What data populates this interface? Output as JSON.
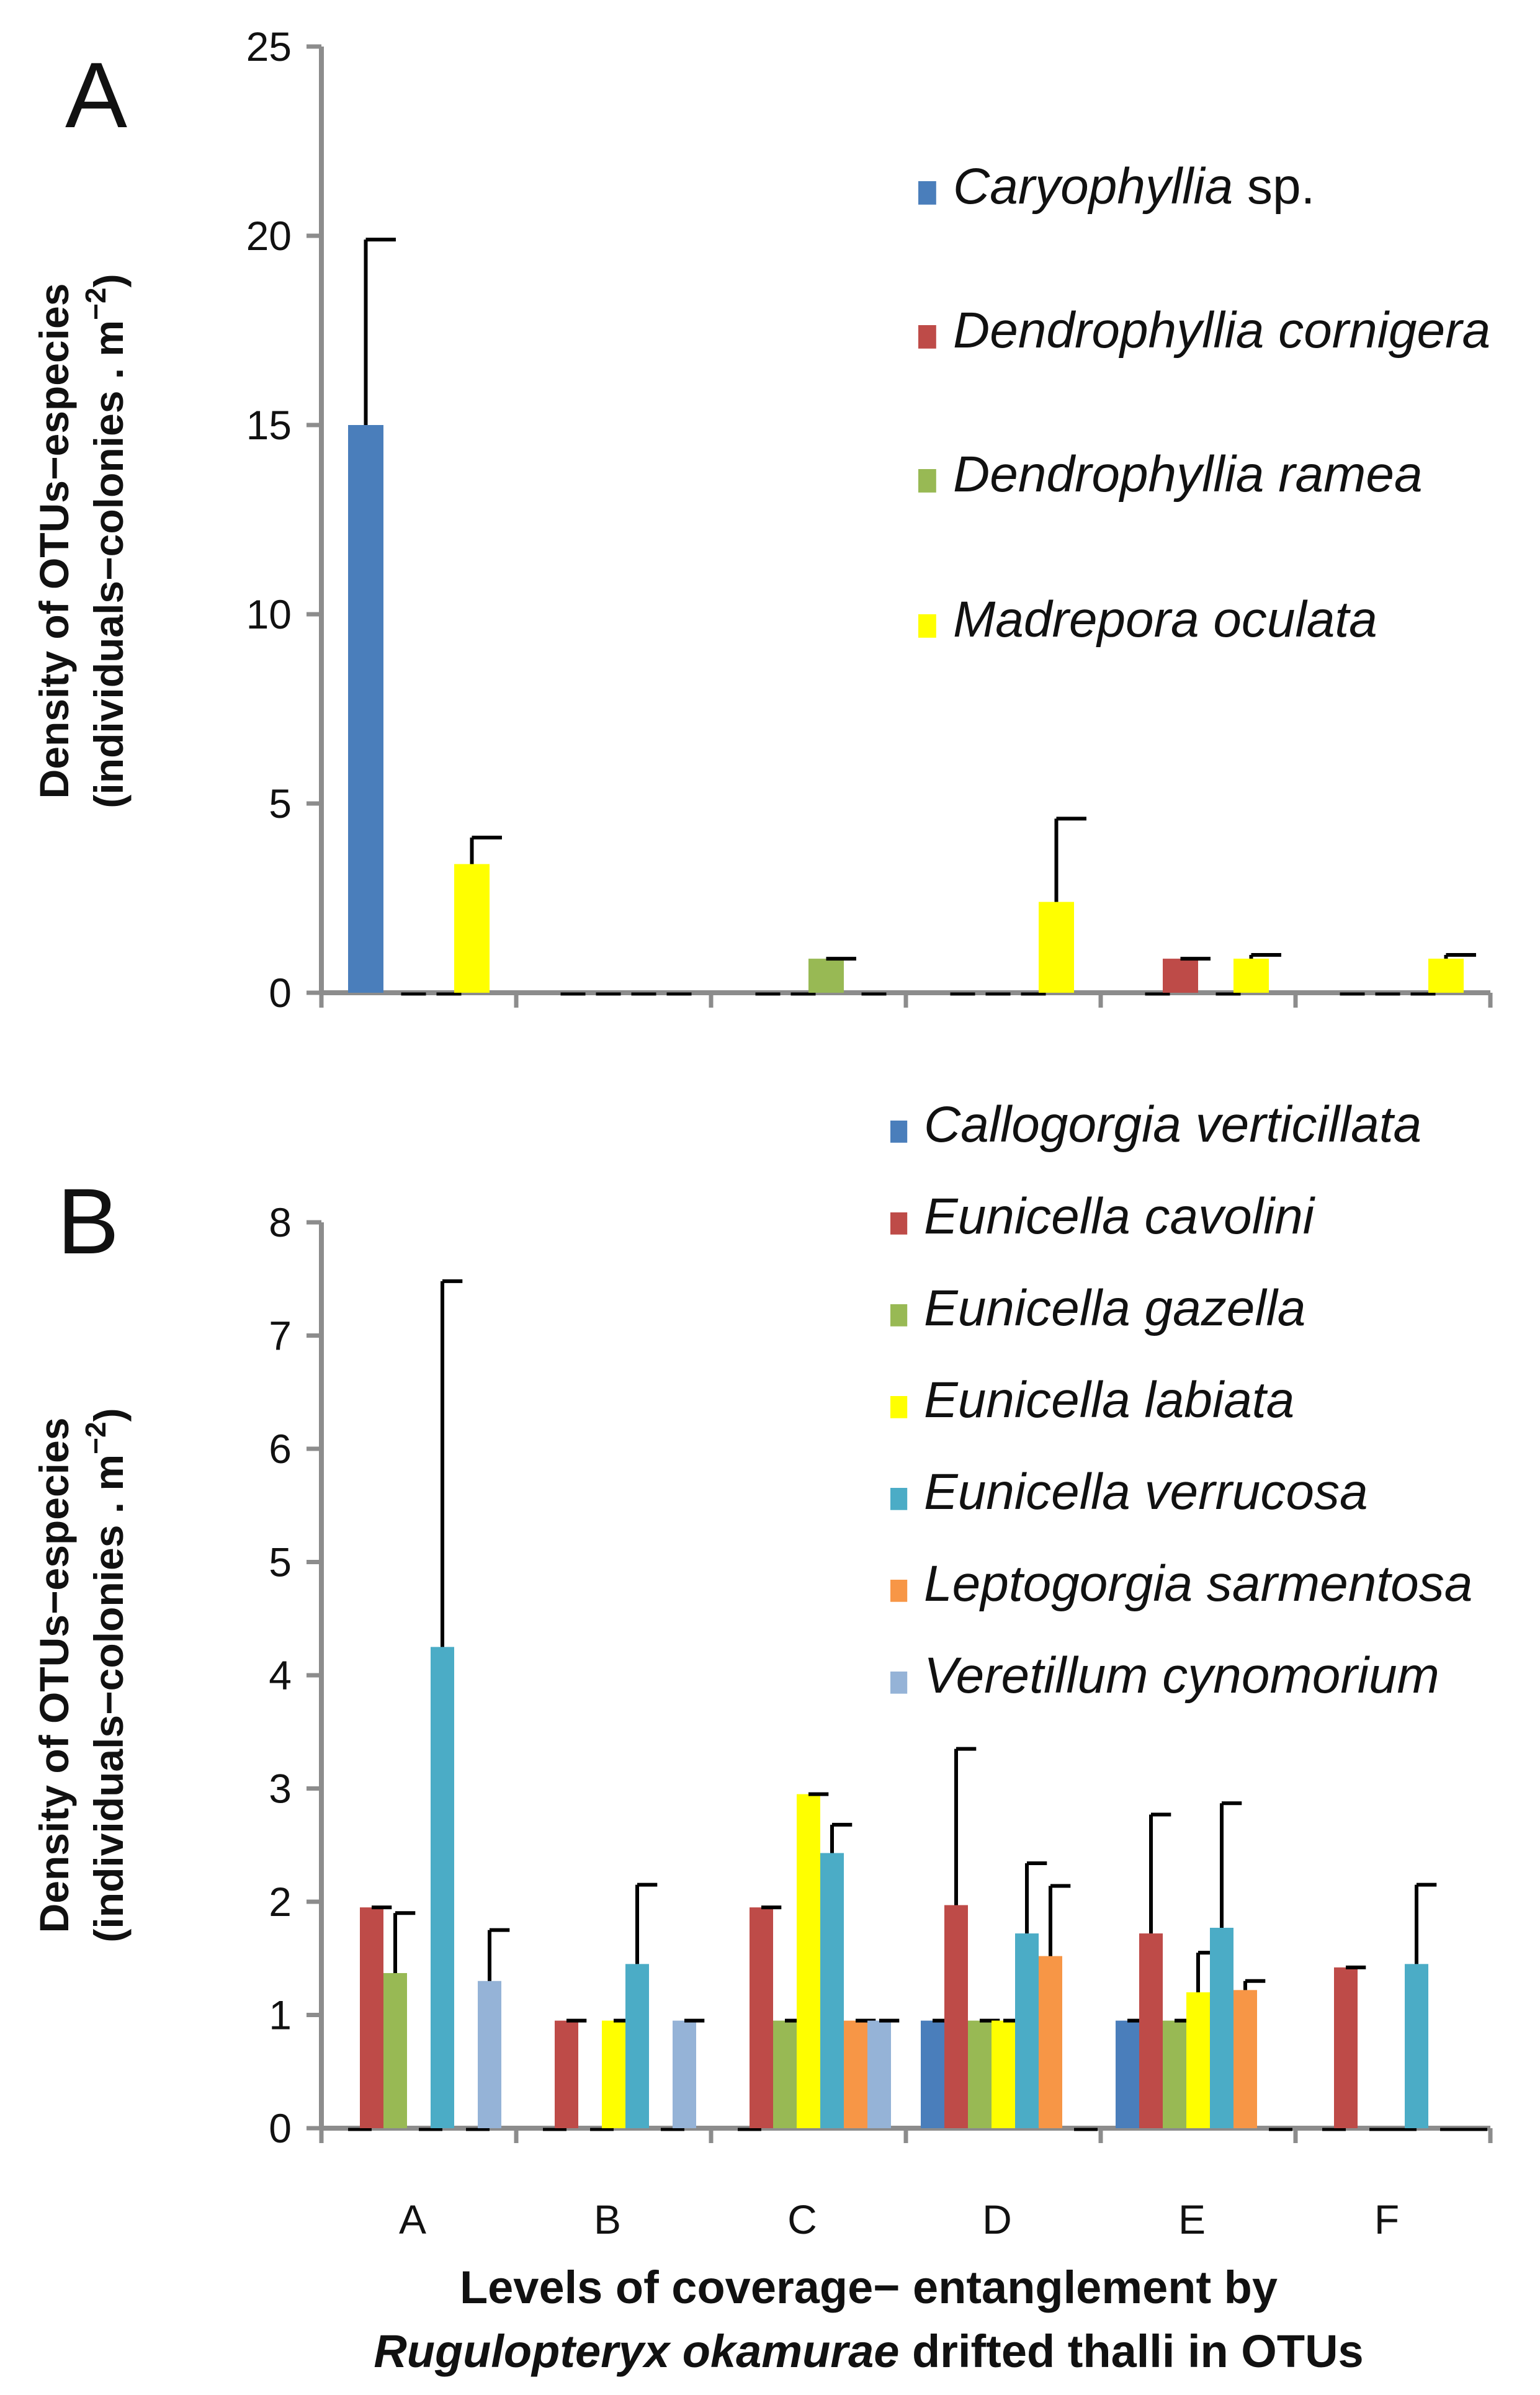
{
  "chart_data": [
    {
      "panel": "A",
      "type": "bar",
      "categories": [
        "A",
        "B",
        "C",
        "D",
        "E",
        "F"
      ],
      "ylabel_line1": "Density of OTUs−especies",
      "ylabel_line2": "(individuals−colonies . m",
      "ylabel_sup": "−2",
      "ylabel_close": ")",
      "ylim": [
        0,
        25
      ],
      "yticks": [
        0,
        5,
        10,
        15,
        20,
        25
      ],
      "series": [
        {
          "name": "Caryophyllia",
          "suffix": " sp.",
          "color": "#4a7ebb",
          "values": [
            15,
            0,
            0,
            0,
            0,
            0
          ],
          "errors": [
            4.9,
            0,
            0,
            0,
            0,
            0
          ]
        },
        {
          "name": "Dendrophyllia cornigera",
          "suffix": "",
          "color": "#be4b48",
          "values": [
            0,
            0,
            0,
            0,
            0.9,
            0
          ],
          "errors": [
            0,
            0,
            0,
            0,
            0,
            0
          ]
        },
        {
          "name": "Dendrophyllia ramea",
          "suffix": "",
          "color": "#98b954",
          "values": [
            0,
            0,
            0.9,
            0,
            0,
            0
          ],
          "errors": [
            0,
            0,
            0,
            0,
            0,
            0
          ]
        },
        {
          "name": "Madrepora oculata",
          "suffix": "",
          "color": "#ffff00",
          "values": [
            3.4,
            0,
            0,
            2.4,
            0.9,
            0.9
          ],
          "errors": [
            0.7,
            0,
            0,
            2.2,
            0.1,
            0.1
          ]
        }
      ]
    },
    {
      "panel": "B",
      "type": "bar",
      "categories": [
        "A",
        "B",
        "C",
        "D",
        "E",
        "F"
      ],
      "ylabel_line1": "Density of OTUs−especies",
      "ylabel_line2": "(individuals−colonies . m",
      "ylabel_sup": "−2",
      "ylabel_close": ")",
      "xlabel_line1": "Levels of coverage− entanglement by",
      "xlabel_line2_italic": "Rugulopteryx okamurae",
      "xlabel_line2_rest": " drifted thalli in OTUs",
      "ylim": [
        0,
        8
      ],
      "yticks": [
        0,
        1,
        2,
        3,
        4,
        5,
        6,
        7,
        8
      ],
      "series": [
        {
          "name": "Callogorgia verticillata",
          "color": "#4a7ebb",
          "values": [
            0,
            0,
            0,
            0.95,
            0.95,
            0
          ],
          "errors": [
            0,
            0,
            0,
            0,
            0,
            0
          ]
        },
        {
          "name": "Eunicella cavolini",
          "color": "#be4b48",
          "values": [
            1.95,
            0.95,
            1.95,
            1.97,
            1.72,
            1.42
          ],
          "errors": [
            0,
            0,
            0,
            1.38,
            1.05,
            0
          ]
        },
        {
          "name": "Eunicella gazella",
          "color": "#98b954",
          "values": [
            1.37,
            0,
            0.95,
            0.95,
            0.95,
            0
          ],
          "errors": [
            0.53,
            0,
            0,
            0,
            0,
            0
          ]
        },
        {
          "name": "Eunicella labiata",
          "color": "#ffff00",
          "values": [
            0,
            0.95,
            2.95,
            0.95,
            1.2,
            0
          ],
          "errors": [
            0,
            0,
            0,
            0,
            0.35,
            0
          ]
        },
        {
          "name": "Eunicella verrucosa",
          "color": "#4bacc6",
          "values": [
            4.25,
            1.45,
            2.43,
            1.72,
            1.77,
            1.45
          ],
          "errors": [
            3.23,
            0.7,
            0.25,
            0.62,
            1.1,
            0.7
          ]
        },
        {
          "name": "Leptogorgia sarmentosa",
          "color": "#f79646",
          "values": [
            0,
            0,
            0.95,
            1.52,
            1.22,
            0
          ],
          "errors": [
            0,
            0,
            0,
            0.62,
            0.08,
            0
          ]
        },
        {
          "name": "Veretillum cynomorium",
          "color": "#95b3d7",
          "values": [
            1.3,
            0.95,
            0.95,
            0,
            0,
            0
          ],
          "errors": [
            0.45,
            0,
            0,
            0,
            0,
            0
          ]
        }
      ]
    }
  ]
}
